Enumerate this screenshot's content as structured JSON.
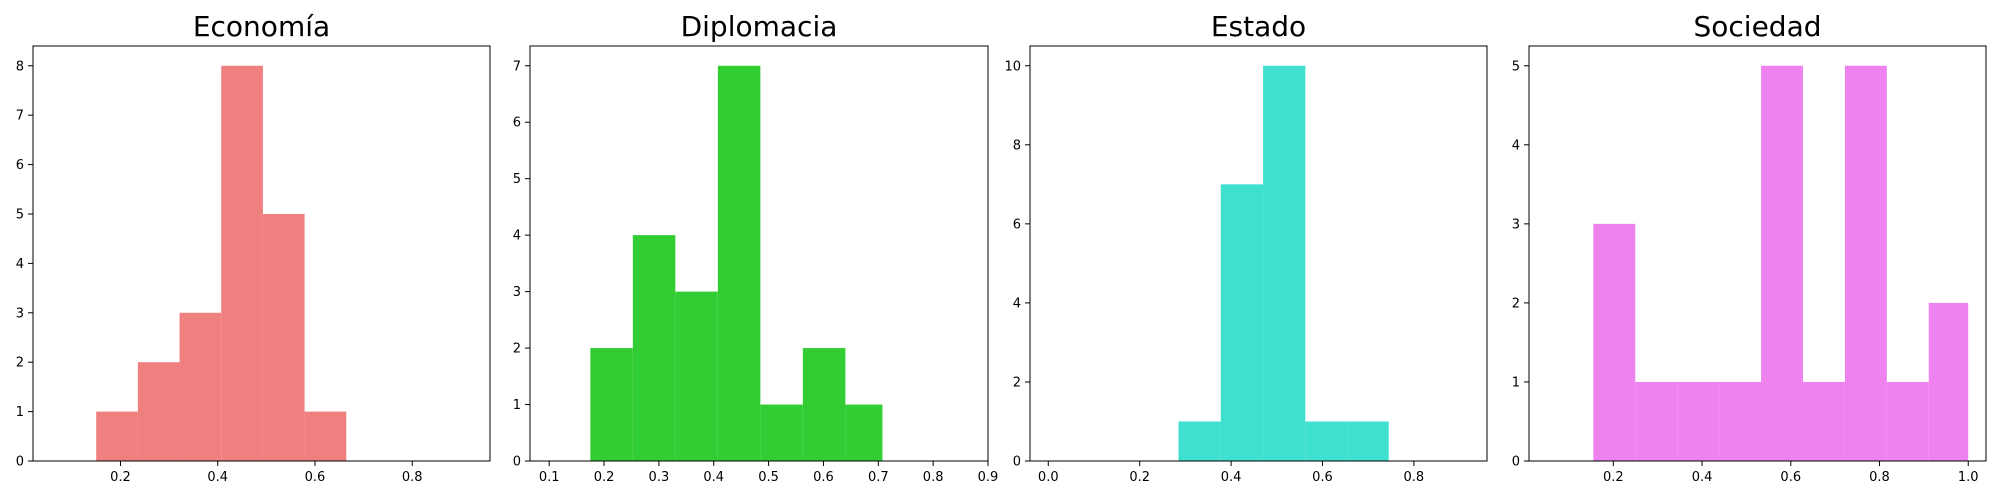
{
  "chart_data": [
    {
      "type": "bar",
      "title": "Economía",
      "color": "#f08080",
      "bins": [
        {
          "x0": 0.15,
          "x1": 0.2357,
          "count": 1
        },
        {
          "x0": 0.2357,
          "x1": 0.3214,
          "count": 2
        },
        {
          "x0": 0.3214,
          "x1": 0.4071,
          "count": 3
        },
        {
          "x0": 0.4071,
          "x1": 0.4929,
          "count": 8
        },
        {
          "x0": 0.4929,
          "x1": 0.5786,
          "count": 5
        },
        {
          "x0": 0.5786,
          "x1": 0.6643,
          "count": 1
        }
      ],
      "xlim": [
        0.02,
        0.96
      ],
      "ylim": [
        0,
        8.4
      ],
      "xticks": [
        "0.2",
        "0.4",
        "0.6",
        "0.8"
      ],
      "xtick_values": [
        0.2,
        0.4,
        0.6,
        0.8
      ],
      "yticks": [
        "0",
        "1",
        "2",
        "3",
        "4",
        "5",
        "6",
        "7",
        "8"
      ],
      "ytick_values": [
        0,
        1,
        2,
        3,
        4,
        5,
        6,
        7,
        8
      ]
    },
    {
      "type": "bar",
      "title": "Diplomacia",
      "color": "#32cd32",
      "bins": [
        {
          "x0": 0.175,
          "x1": 0.2525,
          "count": 2
        },
        {
          "x0": 0.2525,
          "x1": 0.33,
          "count": 4
        },
        {
          "x0": 0.33,
          "x1": 0.4075,
          "count": 3
        },
        {
          "x0": 0.4075,
          "x1": 0.485,
          "count": 7
        },
        {
          "x0": 0.485,
          "x1": 0.5625,
          "count": 1
        },
        {
          "x0": 0.5625,
          "x1": 0.64,
          "count": 2
        },
        {
          "x0": 0.64,
          "x1": 0.7075,
          "count": 1
        }
      ],
      "xlim": [
        0.065,
        0.9
      ],
      "ylim": [
        0,
        7.35
      ],
      "xticks": [
        "0.1",
        "0.2",
        "0.3",
        "0.4",
        "0.5",
        "0.6",
        "0.7",
        "0.8",
        "0.9"
      ],
      "xtick_values": [
        0.1,
        0.2,
        0.3,
        0.4,
        0.5,
        0.6,
        0.7,
        0.8,
        0.9
      ],
      "yticks": [
        "0",
        "1",
        "2",
        "3",
        "4",
        "5",
        "6",
        "7"
      ],
      "ytick_values": [
        0,
        1,
        2,
        3,
        4,
        5,
        6,
        7
      ]
    },
    {
      "type": "bar",
      "title": "Estado",
      "color": "#40e0d0",
      "bins": [
        {
          "x0": 0.285,
          "x1": 0.3775,
          "count": 1
        },
        {
          "x0": 0.3775,
          "x1": 0.47,
          "count": 7
        },
        {
          "x0": 0.47,
          "x1": 0.5625,
          "count": 10
        },
        {
          "x0": 0.5625,
          "x1": 0.655,
          "count": 1
        },
        {
          "x0": 0.655,
          "x1": 0.745,
          "count": 1
        }
      ],
      "xlim": [
        -0.04,
        0.96
      ],
      "ylim": [
        0,
        10.5
      ],
      "xticks": [
        "0.0",
        "0.2",
        "0.4",
        "0.6",
        "0.8"
      ],
      "xtick_values": [
        0,
        0.2,
        0.4,
        0.6,
        0.8
      ],
      "yticks": [
        "0",
        "2",
        "4",
        "6",
        "8",
        "10"
      ],
      "ytick_values": [
        0,
        2,
        4,
        6,
        8,
        10
      ]
    },
    {
      "type": "bar",
      "title": "Sociedad",
      "color": "#ee82ee",
      "bins": [
        {
          "x0": 0.155,
          "x1": 0.2495,
          "count": 3
        },
        {
          "x0": 0.2495,
          "x1": 0.344,
          "count": 1
        },
        {
          "x0": 0.344,
          "x1": 0.4385,
          "count": 1
        },
        {
          "x0": 0.4385,
          "x1": 0.533,
          "count": 1
        },
        {
          "x0": 0.533,
          "x1": 0.6275,
          "count": 5
        },
        {
          "x0": 0.6275,
          "x1": 0.722,
          "count": 1
        },
        {
          "x0": 0.722,
          "x1": 0.8165,
          "count": 5
        },
        {
          "x0": 0.8165,
          "x1": 0.911,
          "count": 1
        },
        {
          "x0": 0.911,
          "x1": 1.0,
          "count": 2
        }
      ],
      "xlim": [
        0.01,
        1.04
      ],
      "ylim": [
        0,
        5.25
      ],
      "xticks": [
        "0.2",
        "0.4",
        "0.6",
        "0.8",
        "1.0"
      ],
      "xtick_values": [
        0.2,
        0.4,
        0.6,
        0.8,
        1.0
      ],
      "yticks": [
        "0",
        "1",
        "2",
        "3",
        "4",
        "5"
      ],
      "ytick_values": [
        0,
        1,
        2,
        3,
        4,
        5
      ]
    }
  ]
}
